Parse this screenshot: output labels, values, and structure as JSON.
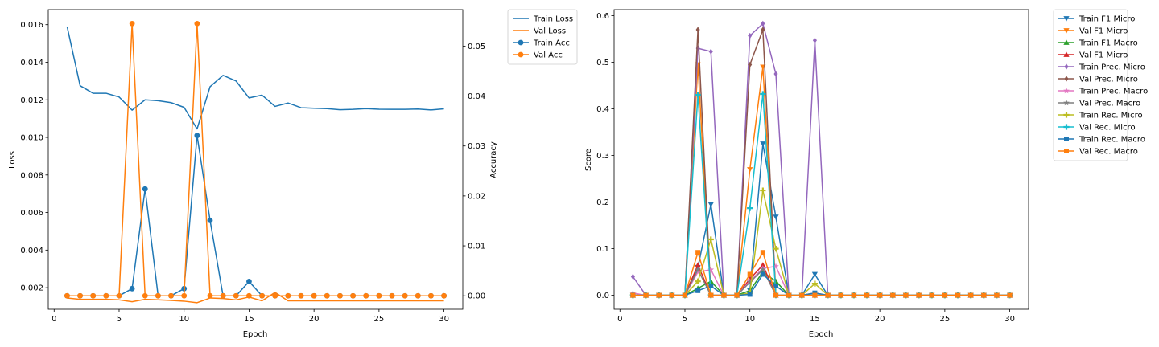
{
  "chart_data": [
    {
      "type": "line",
      "xlabel": "Epoch",
      "ylabel": "Loss",
      "y2label": "Accuracy",
      "xlim": [
        -0.45,
        31.45
      ],
      "ylim": [
        0.00085,
        0.0168
      ],
      "y2lim": [
        -0.0027,
        0.0573
      ],
      "xticks": [
        0,
        5,
        10,
        15,
        20,
        25,
        30
      ],
      "yticks": [
        0.002,
        0.004,
        0.006,
        0.008,
        0.01,
        0.012,
        0.014,
        0.016
      ],
      "ytick_labels": [
        "0.002",
        "0.004",
        "0.006",
        "0.008",
        "0.010",
        "0.012",
        "0.014",
        "0.016"
      ],
      "y2ticks": [
        0.0,
        0.01,
        0.02,
        0.03,
        0.04,
        0.05
      ],
      "y2tick_labels": [
        "0.00",
        "0.01",
        "0.02",
        "0.03",
        "0.04",
        "0.05"
      ],
      "legend_position": "outside-upper-right",
      "x": [
        1,
        2,
        3,
        4,
        5,
        6,
        7,
        8,
        9,
        10,
        11,
        12,
        13,
        14,
        15,
        16,
        17,
        18,
        19,
        20,
        21,
        22,
        23,
        24,
        25,
        26,
        27,
        28,
        29,
        30
      ],
      "series": [
        {
          "name": "Train Loss",
          "axis": "left",
          "color": "#1f77b4",
          "marker": "none",
          "values": [
            0.0159,
            0.01275,
            0.01235,
            0.01235,
            0.01215,
            0.01145,
            0.012,
            0.01195,
            0.01185,
            0.0116,
            0.01045,
            0.0127,
            0.0133,
            0.013,
            0.0121,
            0.01225,
            0.01165,
            0.01183,
            0.01158,
            0.01155,
            0.01153,
            0.01147,
            0.01149,
            0.01153,
            0.0115,
            0.01149,
            0.01149,
            0.01151,
            0.01146,
            0.01152
          ]
        },
        {
          "name": "Val Loss",
          "axis": "left",
          "color": "#ff7f0e",
          "marker": "none",
          "values": [
            0.00145,
            0.00138,
            0.00138,
            0.00138,
            0.00135,
            0.00125,
            0.00138,
            0.00135,
            0.00132,
            0.00128,
            0.0012,
            0.00145,
            0.00142,
            0.00135,
            0.0015,
            0.0013,
            0.00175,
            0.0013,
            0.0013,
            0.0013,
            0.0013,
            0.0013,
            0.0013,
            0.0013,
            0.0013,
            0.0013,
            0.0013,
            0.0013,
            0.0013,
            0.0013
          ]
        },
        {
          "name": "Train Acc",
          "axis": "right",
          "color": "#1f77b4",
          "marker": "circle",
          "values": [
            0,
            0,
            0,
            0,
            0,
            0.00143,
            0.0214,
            0,
            0,
            0.00143,
            0.0321,
            0.0151,
            0,
            0,
            0.00286,
            0,
            0,
            0,
            0,
            0,
            0,
            0,
            0,
            0,
            0,
            0,
            0,
            0,
            0,
            0
          ]
        },
        {
          "name": "Val Acc",
          "axis": "right",
          "color": "#ff7f0e",
          "marker": "circle",
          "values": [
            0,
            0,
            0,
            0,
            0,
            0.0545,
            0,
            0,
            0,
            0,
            0.0545,
            0,
            0,
            0,
            0,
            0,
            0,
            0,
            0,
            0,
            0,
            0,
            0,
            0,
            0,
            0,
            0,
            0,
            0,
            0
          ]
        }
      ]
    },
    {
      "type": "line",
      "xlabel": "Epoch",
      "ylabel": "Score",
      "xlim": [
        -0.45,
        31.45
      ],
      "ylim": [
        -0.03,
        0.613
      ],
      "xticks": [
        0,
        5,
        10,
        15,
        20,
        25,
        30
      ],
      "yticks": [
        0.0,
        0.1,
        0.2,
        0.3,
        0.4,
        0.5,
        0.6
      ],
      "ytick_labels": [
        "0.0",
        "0.1",
        "0.2",
        "0.3",
        "0.4",
        "0.5",
        "0.6"
      ],
      "legend_position": "outside-upper-right",
      "x": [
        1,
        2,
        3,
        4,
        5,
        6,
        7,
        8,
        9,
        10,
        11,
        12,
        13,
        14,
        15,
        16,
        17,
        18,
        19,
        20,
        21,
        22,
        23,
        24,
        25,
        26,
        27,
        28,
        29,
        30
      ],
      "series": [
        {
          "name": "Train F1 Micro",
          "color": "#1f77b4",
          "marker": "tri_down",
          "values": [
            0,
            0,
            0,
            0,
            0,
            0.06,
            0.195,
            0,
            0,
            0.01,
            0.325,
            0.168,
            0,
            0,
            0.045,
            0,
            0,
            0,
            0,
            0,
            0,
            0,
            0,
            0,
            0,
            0,
            0,
            0,
            0,
            0
          ]
        },
        {
          "name": "Val F1 Micro",
          "color": "#ff7f0e",
          "marker": "tri_down",
          "values": [
            0,
            0,
            0,
            0,
            0,
            0.495,
            0,
            0,
            0,
            0.27,
            0.49,
            0,
            0,
            0,
            0,
            0,
            0,
            0,
            0,
            0,
            0,
            0,
            0,
            0,
            0,
            0,
            0,
            0,
            0,
            0
          ]
        },
        {
          "name": "Train F1 Macro",
          "color": "#2ca02c",
          "marker": "tri_up",
          "values": [
            0,
            0,
            0,
            0,
            0,
            0.015,
            0.03,
            0,
            0,
            0.01,
            0.05,
            0.03,
            0,
            0,
            0.005,
            0,
            0,
            0,
            0,
            0,
            0,
            0,
            0,
            0,
            0,
            0,
            0,
            0,
            0,
            0
          ]
        },
        {
          "name": "Val F1 Micro",
          "color": "#d62728",
          "marker": "tri_up",
          "values": [
            0,
            0,
            0,
            0,
            0,
            0.065,
            0,
            0,
            0,
            0.035,
            0.065,
            0,
            0,
            0,
            0,
            0,
            0,
            0,
            0,
            0,
            0,
            0,
            0,
            0,
            0,
            0,
            0,
            0,
            0,
            0
          ]
        },
        {
          "name": "Train Prec. Micro",
          "color": "#9467bd",
          "marker": "diamond",
          "values": [
            0.04,
            0,
            0,
            0,
            0,
            0.53,
            0.523,
            0,
            0,
            0.557,
            0.583,
            0.475,
            0,
            0,
            0.547,
            0,
            0,
            0,
            0,
            0,
            0,
            0,
            0,
            0,
            0,
            0,
            0,
            0,
            0,
            0
          ]
        },
        {
          "name": "Val Prec. Micro",
          "color": "#8c564b",
          "marker": "diamond",
          "values": [
            0,
            0,
            0,
            0,
            0,
            0.57,
            0,
            0,
            0,
            0.495,
            0.57,
            0,
            0,
            0,
            0,
            0,
            0,
            0,
            0,
            0,
            0,
            0,
            0,
            0,
            0,
            0,
            0,
            0,
            0,
            0
          ]
        },
        {
          "name": "Train Prec. Macro",
          "color": "#e377c2",
          "marker": "star",
          "values": [
            0.005,
            0,
            0,
            0,
            0,
            0.05,
            0.055,
            0,
            0,
            0.03,
            0.058,
            0.062,
            0,
            0,
            0.005,
            0,
            0,
            0,
            0,
            0,
            0,
            0,
            0,
            0,
            0,
            0,
            0,
            0,
            0,
            0
          ]
        },
        {
          "name": "Val Prec. Macro",
          "color": "#7f7f7f",
          "marker": "star",
          "values": [
            0,
            0,
            0,
            0,
            0,
            0.055,
            0,
            0,
            0,
            0.028,
            0.055,
            0,
            0,
            0,
            0,
            0,
            0,
            0,
            0,
            0,
            0,
            0,
            0,
            0,
            0,
            0,
            0,
            0,
            0,
            0
          ]
        },
        {
          "name": "Train Rec. Micro",
          "color": "#bcbd22",
          "marker": "plus",
          "values": [
            0,
            0,
            0,
            0,
            0,
            0.03,
            0.12,
            0,
            0,
            0.005,
            0.225,
            0.1,
            0,
            0,
            0.025,
            0,
            0,
            0,
            0,
            0,
            0,
            0,
            0,
            0,
            0,
            0,
            0,
            0,
            0,
            0
          ]
        },
        {
          "name": "Val Rec. Micro",
          "color": "#17becf",
          "marker": "plus",
          "values": [
            0,
            0,
            0,
            0,
            0,
            0.43,
            0,
            0,
            0,
            0.187,
            0.432,
            0,
            0,
            0,
            0,
            0,
            0,
            0,
            0,
            0,
            0,
            0,
            0,
            0,
            0,
            0,
            0,
            0,
            0,
            0
          ]
        },
        {
          "name": "Train Rec. Macro",
          "color": "#1f77b4",
          "marker": "square",
          "values": [
            0,
            0,
            0,
            0,
            0,
            0.01,
            0.02,
            0,
            0,
            0.002,
            0.045,
            0.02,
            0,
            0,
            0.005,
            0,
            0,
            0,
            0,
            0,
            0,
            0,
            0,
            0,
            0,
            0,
            0,
            0,
            0,
            0
          ]
        },
        {
          "name": "Val Rec. Macro",
          "color": "#ff7f0e",
          "marker": "square",
          "values": [
            0,
            0,
            0,
            0,
            0,
            0.092,
            0,
            0,
            0,
            0.045,
            0.092,
            0,
            0,
            0,
            0,
            0,
            0,
            0,
            0,
            0,
            0,
            0,
            0,
            0,
            0,
            0,
            0,
            0,
            0,
            0
          ]
        }
      ]
    }
  ]
}
